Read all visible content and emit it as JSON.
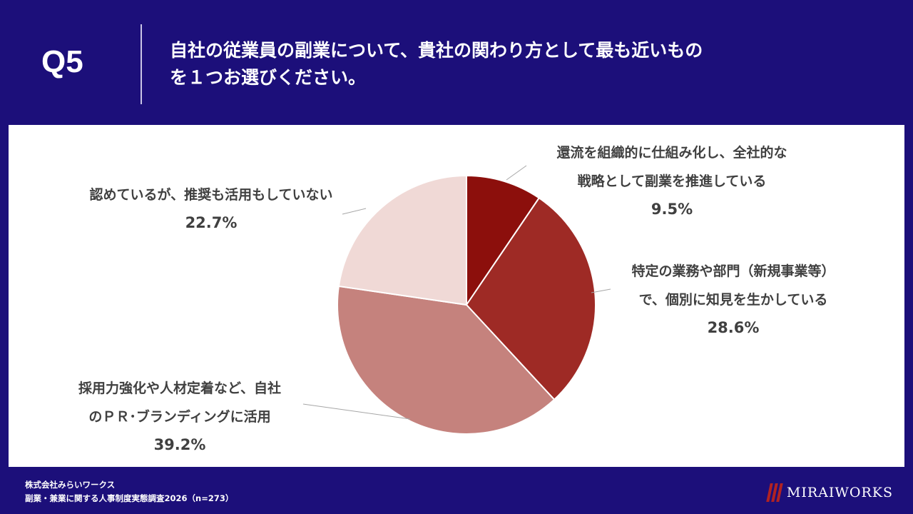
{
  "header": {
    "q_number": "Q5",
    "question_line1": "自社の従業員の副業について、貴社の関わり方として最も近いもの",
    "question_line2": "を１つお選びください。"
  },
  "chart_data": {
    "type": "pie",
    "start_angle": "12 o'clock",
    "direction": "clockwise",
    "slices": [
      {
        "label_lines": [
          "還流を組織的に仕組み化し、全社的な",
          "戦略として副業を推進している"
        ],
        "value": 9.5,
        "value_label": "9.5%",
        "color": "#8c0f0c"
      },
      {
        "label_lines": [
          "特定の業務や部門（新規事業等）",
          "で、個別に知見を生かしている"
        ],
        "value": 28.6,
        "value_label": "28.6%",
        "color": "#9e2a25"
      },
      {
        "label_lines": [
          "採用力強化や人材定着など、自社",
          "のＰＲ･ブランディングに活用"
        ],
        "value": 39.2,
        "value_label": "39.2%",
        "color": "#c5827d"
      },
      {
        "label_lines": [
          "認めているが、推奨も活用もしていない"
        ],
        "value": 22.7,
        "value_label": "22.7%",
        "color": "#f0d9d6"
      }
    ]
  },
  "footer": {
    "company": "株式会社みらいワークス",
    "survey": "副業・兼業に関する人事制度実態調査2026（n=273）"
  },
  "logo": {
    "text": "MIRAIWORKS"
  }
}
